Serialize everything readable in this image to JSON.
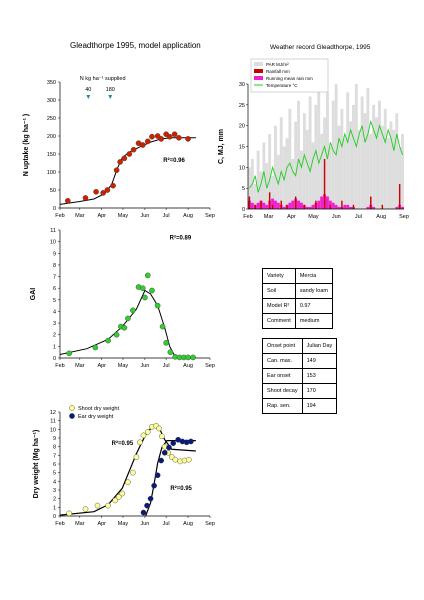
{
  "main_title": "Gleadthorpe 1995, model application",
  "weather_title": "Weather record Gleadthorpe, 1995",
  "months": [
    "Feb",
    "Mar",
    "Apr",
    "May",
    "Jun",
    "Jul",
    "Aug",
    "Sep"
  ],
  "colors": {
    "n_uptake_points": "#cc2200",
    "gai_points": "#33cc33",
    "shoot_points": "#ffff99",
    "ear_points": "#0a1a7a",
    "model_line": "#000000",
    "rain": "#cc0000",
    "par": "#dddddd",
    "temp": "#22cc22",
    "mean_rain": "#ee22cc"
  },
  "chart_data": [
    {
      "type": "scatter",
      "id": "n_uptake",
      "ylabel": "N uptake (kg ha⁻¹ )",
      "ylim": [
        0,
        350
      ],
      "yticks": [
        0,
        50,
        100,
        150,
        200,
        250,
        300,
        350
      ],
      "x_unit": "day of year",
      "annotation": "N kg ha⁻¹ supplied",
      "fertiliser": [
        {
          "label": "40",
          "x": 72
        },
        {
          "label": "180",
          "x": 103
        }
      ],
      "r2": "R²=0.96",
      "points": [
        [
          43,
          20
        ],
        [
          68,
          28
        ],
        [
          83,
          45
        ],
        [
          93,
          42
        ],
        [
          99,
          50
        ],
        [
          107,
          62
        ],
        [
          112,
          105
        ],
        [
          117,
          128
        ],
        [
          123,
          138
        ],
        [
          130,
          150
        ],
        [
          136,
          162
        ],
        [
          143,
          180
        ],
        [
          149,
          175
        ],
        [
          156,
          185
        ],
        [
          162,
          198
        ],
        [
          170,
          200
        ],
        [
          175,
          192
        ],
        [
          182,
          205
        ],
        [
          187,
          198
        ],
        [
          194,
          205
        ],
        [
          200,
          195
        ],
        [
          213,
          192
        ]
      ],
      "model": [
        [
          32,
          10
        ],
        [
          60,
          18
        ],
        [
          80,
          25
        ],
        [
          95,
          40
        ],
        [
          105,
          65
        ],
        [
          113,
          110
        ],
        [
          120,
          140
        ],
        [
          130,
          155
        ],
        [
          145,
          170
        ],
        [
          160,
          183
        ],
        [
          175,
          192
        ],
        [
          190,
          195
        ],
        [
          224,
          195
        ]
      ]
    },
    {
      "type": "scatter",
      "id": "gai",
      "ylabel": "GAI",
      "ylim": [
        0,
        11
      ],
      "yticks": [
        0,
        1,
        2,
        3,
        4,
        5,
        6,
        7,
        8,
        9,
        10,
        11
      ],
      "r2": "R²=0.89",
      "points": [
        [
          45,
          0.4
        ],
        [
          82,
          0.9
        ],
        [
          100,
          1.5
        ],
        [
          112,
          2.0
        ],
        [
          118,
          2.7
        ],
        [
          123,
          2.6
        ],
        [
          128,
          3.4
        ],
        [
          135,
          4.1
        ],
        [
          143,
          6.1
        ],
        [
          149,
          6.0
        ],
        [
          152,
          5.2
        ],
        [
          156,
          7.1
        ],
        [
          162,
          5.8
        ],
        [
          170,
          4.5
        ],
        [
          177,
          2.7
        ],
        [
          182,
          1.3
        ],
        [
          188,
          0.5
        ],
        [
          195,
          0.1
        ],
        [
          201,
          0.05
        ],
        [
          207,
          0.05
        ],
        [
          213,
          0.05
        ],
        [
          220,
          0.05
        ]
      ],
      "model": [
        [
          32,
          0.3
        ],
        [
          70,
          0.8
        ],
        [
          100,
          1.6
        ],
        [
          120,
          2.7
        ],
        [
          140,
          4.2
        ],
        [
          152,
          5.8
        ],
        [
          160,
          5.5
        ],
        [
          170,
          4.5
        ],
        [
          180,
          2.6
        ],
        [
          187,
          1.0
        ],
        [
          193,
          0.3
        ],
        [
          200,
          0.05
        ],
        [
          224,
          0.05
        ]
      ]
    },
    {
      "type": "scatter",
      "id": "dry_weight",
      "ylabel": "Dry weight (Mg ha⁻¹)",
      "ylim": [
        0,
        12
      ],
      "yticks": [
        0,
        1,
        2,
        3,
        4,
        5,
        6,
        7,
        8,
        9,
        10,
        11,
        12
      ],
      "legend": [
        "Shoot dry weight",
        "Ear dry weight"
      ],
      "r2_shoot": "R²=0.95",
      "r2_ear": "R²=0.95",
      "shoot_points": [
        [
          45,
          0.3
        ],
        [
          68,
          0.8
        ],
        [
          85,
          1.2
        ],
        [
          100,
          1.2
        ],
        [
          110,
          1.8
        ],
        [
          115,
          2.2
        ],
        [
          120,
          2.6
        ],
        [
          128,
          3.9
        ],
        [
          135,
          5.0
        ],
        [
          140,
          6.8
        ],
        [
          145,
          8.5
        ],
        [
          150,
          9.3
        ],
        [
          156,
          9.7
        ],
        [
          162,
          10.3
        ],
        [
          168,
          10.4
        ],
        [
          172,
          10.1
        ],
        [
          176,
          9.2
        ],
        [
          180,
          8.0
        ],
        [
          185,
          7.3
        ],
        [
          190,
          6.8
        ],
        [
          195,
          6.5
        ],
        [
          202,
          6.3
        ],
        [
          208,
          6.4
        ],
        [
          214,
          6.5
        ]
      ],
      "shoot_model": [
        [
          32,
          0.1
        ],
        [
          80,
          0.5
        ],
        [
          100,
          1.3
        ],
        [
          120,
          3.2
        ],
        [
          140,
          7.2
        ],
        [
          155,
          9.7
        ],
        [
          165,
          10.4
        ],
        [
          172,
          10.2
        ],
        [
          180,
          8.8
        ],
        [
          190,
          7.7
        ],
        [
          224,
          7.5
        ]
      ],
      "ear_points": [
        [
          150,
          0.4
        ],
        [
          155,
          1.2
        ],
        [
          160,
          2.0
        ],
        [
          165,
          3.5
        ],
        [
          170,
          4.7
        ],
        [
          175,
          6.4
        ],
        [
          180,
          7.3
        ],
        [
          186,
          7.9
        ],
        [
          192,
          8.4
        ],
        [
          199,
          8.8
        ],
        [
          205,
          8.6
        ],
        [
          211,
          8.5
        ],
        [
          217,
          8.6
        ]
      ],
      "ear_model": [
        [
          153,
          0.0
        ],
        [
          160,
          1.5
        ],
        [
          165,
          3.7
        ],
        [
          170,
          6.1
        ],
        [
          176,
          7.9
        ],
        [
          183,
          8.7
        ],
        [
          224,
          8.7
        ]
      ]
    },
    {
      "type": "area",
      "id": "weather",
      "ylabel": "C, MJ, mm",
      "ylim": [
        0,
        30
      ],
      "yticks": [
        0,
        5,
        10,
        15,
        20,
        25,
        30
      ],
      "legend": [
        "PAR MJ/m²",
        "Rainfall mm",
        "Running mean rain mm",
        "Temperature °C"
      ],
      "temperature": [
        5,
        6,
        8,
        4,
        6,
        9,
        5,
        7,
        10,
        8,
        6,
        9,
        7,
        10,
        11,
        9,
        8,
        12,
        10,
        13,
        11,
        9,
        12,
        14,
        11,
        13,
        15,
        12,
        16,
        14,
        13,
        17,
        15,
        18,
        16,
        19,
        17,
        15,
        18,
        20,
        16,
        18,
        21,
        19,
        17,
        20,
        18,
        16,
        19,
        17,
        14,
        18,
        15,
        13
      ],
      "par": [
        10,
        12,
        6,
        14,
        9,
        16,
        11,
        18,
        8,
        20,
        13,
        22,
        15,
        17,
        24,
        12,
        21,
        26,
        14,
        23,
        19,
        27,
        16,
        25,
        29,
        18,
        22,
        28,
        15,
        26,
        30,
        20,
        24,
        17,
        28,
        21,
        25,
        30,
        19,
        27,
        23,
        29,
        18,
        25,
        22,
        26,
        20,
        24,
        17,
        21,
        19,
        23,
        15,
        18
      ],
      "rain": [
        3,
        0,
        1,
        0,
        2,
        0,
        0,
        4,
        1,
        0,
        0,
        2,
        0,
        1,
        0,
        0,
        3,
        0,
        0,
        1,
        0,
        0,
        0,
        2,
        0,
        0,
        12,
        0,
        1,
        0,
        0,
        0,
        2,
        0,
        0,
        0,
        1,
        0,
        0,
        0,
        0,
        0,
        3,
        0,
        0,
        0,
        1,
        0,
        0,
        0,
        0,
        0,
        6,
        0
      ],
      "mean_rain": [
        2,
        1.5,
        1,
        1.5,
        2,
        1.5,
        1,
        2,
        2.5,
        2,
        1.5,
        1,
        0.5,
        1,
        1.5,
        2,
        2.5,
        2,
        1.5,
        1,
        0.5,
        0.5,
        1,
        1.5,
        2,
        3,
        3.5,
        3,
        2,
        1.5,
        1,
        0.5,
        0.5,
        1,
        1,
        0.5,
        0.5,
        0,
        0,
        0,
        0,
        0.5,
        1,
        0.5,
        0,
        0,
        0,
        0,
        0,
        0,
        0,
        0.5,
        1,
        0.5
      ]
    }
  ],
  "table_model": {
    "rows": [
      [
        "Variety",
        "Mercia"
      ],
      [
        "Soil",
        "sandy loam"
      ],
      [
        "Model R²",
        "0.97"
      ],
      [
        "Comment",
        "medium"
      ]
    ]
  },
  "table_onset": {
    "header": [
      "Onset point",
      "Julian Day"
    ],
    "rows": [
      [
        "Can. max.",
        "149"
      ],
      [
        "Ear onset",
        "153"
      ],
      [
        "Shoot decay",
        "170"
      ],
      [
        "Rap. sen.",
        "194"
      ]
    ]
  }
}
